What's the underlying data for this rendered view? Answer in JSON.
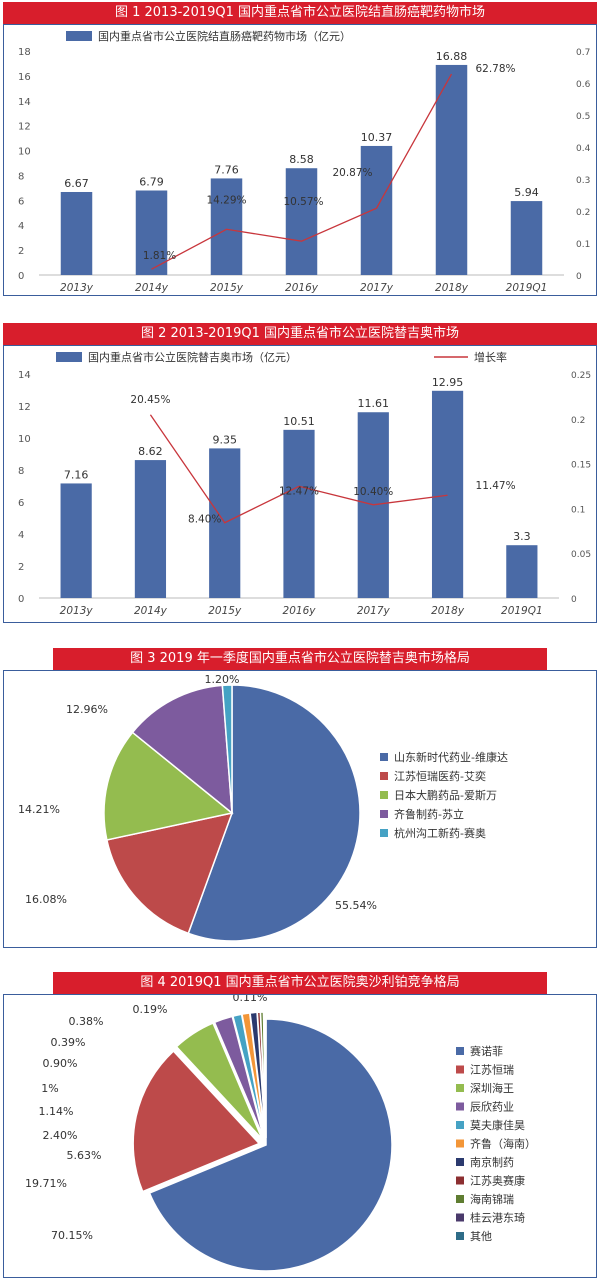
{
  "colors": {
    "bar": "#4a6aa6",
    "line": "#c8363c",
    "header_bg": "#d81e2c",
    "frame": "#3a5d9c"
  },
  "figures": [
    {
      "title": "图 1   2013-2019Q1 国内重点省市公立医院结直肠癌靶药物市场"
    },
    {
      "title": "图 2   2013-2019Q1 国内重点省市公立医院替吉奥市场"
    },
    {
      "title": "图 3   2019 年一季度国内重点省市公立医院替吉奥市场格局"
    },
    {
      "title": "图 4   2019Q1 国内重点省市公立医院奥沙利铂竞争格局"
    }
  ],
  "chart_data": [
    {
      "type": "bar",
      "categories": [
        "2013y",
        "2014y",
        "2015y",
        "2016y",
        "2017y",
        "2018y",
        "2019Q1"
      ],
      "series": [
        {
          "name": "国内重点省市公立医院结直肠癌靶药物市场（亿元）",
          "values": [
            6.67,
            6.79,
            7.76,
            8.58,
            10.37,
            16.88,
            5.94
          ]
        },
        {
          "type": "line",
          "axis": "right",
          "values": [
            null,
            0.0181,
            0.1429,
            0.1057,
            0.2087,
            0.6278,
            null
          ],
          "labels": [
            "",
            "1.81%",
            "14.29%",
            "10.57%",
            "20.87%",
            "62.78%",
            ""
          ]
        }
      ],
      "ylim": [
        0,
        18
      ],
      "yticks": [
        0,
        2,
        4,
        6,
        8,
        10,
        12,
        14,
        16,
        18
      ],
      "y2lim": [
        0,
        0.7
      ],
      "y2ticks": [
        "0",
        "0.1",
        "0.2",
        "0.3",
        "0.4",
        "0.5",
        "0.6",
        "0.7"
      ],
      "legend": "top-left",
      "grid": false
    },
    {
      "type": "bar",
      "categories": [
        "2013y",
        "2014y",
        "2015y",
        "2016y",
        "2017y",
        "2018y",
        "2019Q1"
      ],
      "series": [
        {
          "name": "国内重点省市公立医院替吉奥市场（亿元）",
          "values": [
            7.16,
            8.62,
            9.35,
            10.51,
            11.61,
            12.95,
            3.3
          ]
        },
        {
          "name": "增长率",
          "type": "line",
          "axis": "right",
          "values": [
            null,
            0.2045,
            0.084,
            0.1247,
            0.104,
            0.1147,
            null
          ],
          "labels": [
            "",
            "20.45%",
            "8.40%",
            "12.47%",
            "10.40%",
            "11.47%",
            ""
          ]
        }
      ],
      "ylim": [
        0,
        14
      ],
      "yticks": [
        0,
        2,
        4,
        6,
        8,
        10,
        12,
        14
      ],
      "y2lim": [
        0,
        0.25
      ],
      "y2ticks": [
        "0",
        "0.05",
        "0.1",
        "0.15",
        "0.2",
        "0.25"
      ],
      "legend": "top",
      "grid": false
    },
    {
      "type": "pie",
      "slices": [
        {
          "name": "山东新时代药业-维康达",
          "value": 55.54,
          "label": "55.54%",
          "color": "#4a6aa6"
        },
        {
          "name": "江苏恒瑞医药-艾奕",
          "value": 16.08,
          "label": "16.08%",
          "color": "#bd4a4a"
        },
        {
          "name": "日本大鹏药品-爱斯万",
          "value": 14.21,
          "label": "14.21%",
          "color": "#94bc4f"
        },
        {
          "name": "齐鲁制药-苏立",
          "value": 12.96,
          "label": "12.96%",
          "color": "#7d5b9e"
        },
        {
          "name": "杭州沟工新药-赛奥",
          "value": 1.2,
          "label": "1.20%",
          "color": "#45a2c4"
        }
      ],
      "legend": "right"
    },
    {
      "type": "pie",
      "slices": [
        {
          "name": "赛诺菲",
          "value": 70.15,
          "label": "70.15%",
          "color": "#4a6aa6"
        },
        {
          "name": "江苏恒瑞",
          "value": 19.71,
          "label": "19.71%",
          "color": "#bd4a4a"
        },
        {
          "name": "深圳海王",
          "value": 5.63,
          "label": "5.63%",
          "color": "#94bc4f"
        },
        {
          "name": "辰欣药业",
          "value": 2.4,
          "label": "2.40%",
          "color": "#7d5b9e"
        },
        {
          "name": "莫夫康佳昊",
          "value": 1.14,
          "label": "1.14%",
          "color": "#45a2c4"
        },
        {
          "name": "齐鲁（海南）",
          "value": 1,
          "label": "1%",
          "color": "#f39638"
        },
        {
          "name": "南京制药",
          "value": 0.9,
          "label": "0.90%",
          "color": "#2b3a6e"
        },
        {
          "name": "江苏奥赛康",
          "value": 0.39,
          "label": "0.39%",
          "color": "#8c2f31"
        },
        {
          "name": "海南锦瑞",
          "value": 0.38,
          "label": "0.38%",
          "color": "#5f7d31"
        },
        {
          "name": "桂云港东琦",
          "value": 0.19,
          "label": "0.19%",
          "color": "#4a3a6b"
        },
        {
          "name": "其他",
          "value": 0.11,
          "label": "0.11%",
          "color": "#2e6c88"
        }
      ],
      "legend": "right"
    }
  ]
}
